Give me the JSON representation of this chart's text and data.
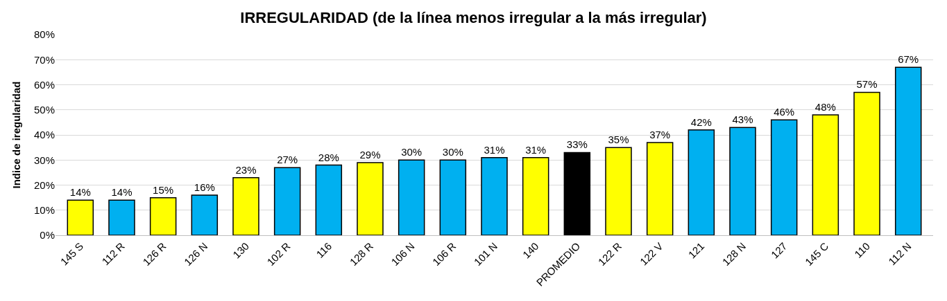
{
  "chart_data": {
    "type": "bar",
    "title": "IRREGULARIDAD (de la línea menos irregular a la más irregular)",
    "ylabel": "Indice de iregularidad",
    "categories": [
      "145 S",
      "112 R",
      "126 R",
      "126 N",
      "130",
      "102 R",
      "116",
      "128 R",
      "106 N",
      "106 R",
      "101 N",
      "140",
      "PROMEDIO",
      "122 R",
      "122 V",
      "121",
      "128 N",
      "127",
      "145 C",
      "110",
      "112 N"
    ],
    "values": [
      14,
      14,
      15,
      16,
      23,
      27,
      28,
      29,
      30,
      30,
      31,
      31,
      33,
      35,
      37,
      42,
      43,
      46,
      48,
      57,
      67
    ],
    "value_labels": [
      "14%",
      "14%",
      "15%",
      "16%",
      "23%",
      "27%",
      "28%",
      "29%",
      "30%",
      "30%",
      "31%",
      "31%",
      "33%",
      "35%",
      "37%",
      "42%",
      "43%",
      "46%",
      "48%",
      "57%",
      "67%"
    ],
    "colors": [
      "#ffff00",
      "#00b0f0",
      "#ffff00",
      "#00b0f0",
      "#ffff00",
      "#00b0f0",
      "#00b0f0",
      "#ffff00",
      "#00b0f0",
      "#00b0f0",
      "#00b0f0",
      "#ffff00",
      "#000000",
      "#ffff00",
      "#ffff00",
      "#00b0f0",
      "#00b0f0",
      "#00b0f0",
      "#ffff00",
      "#ffff00",
      "#00b0f0"
    ],
    "ylim": [
      0,
      80
    ],
    "yticks": [
      {
        "value": 0,
        "label": "0%"
      },
      {
        "value": 10,
        "label": "10%"
      },
      {
        "value": 20,
        "label": "20%"
      },
      {
        "value": 30,
        "label": "30%"
      },
      {
        "value": 40,
        "label": "40%"
      },
      {
        "value": 50,
        "label": "50%"
      },
      {
        "value": 60,
        "label": "60%"
      },
      {
        "value": 70,
        "label": "70%"
      },
      {
        "value": 80,
        "label": "80%"
      }
    ],
    "grid": "y",
    "legend": false
  }
}
